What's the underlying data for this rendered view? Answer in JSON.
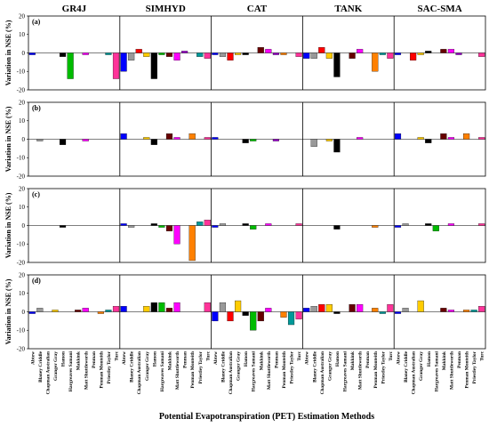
{
  "chart_data": {
    "type": "bar",
    "xlabel": "Potential Evapotranspiration (PET) Estimation Methods",
    "ylabel": "Variation in NSE (%)",
    "ylim": [
      -20,
      20
    ],
    "yticks": [
      -20,
      -10,
      0,
      10,
      20
    ],
    "models": [
      "GR4J",
      "SIMHYD",
      "CAT",
      "TANK",
      "SAC-SMA"
    ],
    "panels": [
      "(a)",
      "(b)",
      "(c)",
      "(d)"
    ],
    "categories": [
      "Abtew",
      "Blaney Criddle",
      "Chapman Australian",
      "Granger Gray",
      "Hamon",
      "Hargreaves Samani",
      "Makkink",
      "Matt Shuttleworth",
      "Penman",
      "Penman Monteith",
      "Priestley Taylor",
      "Turc"
    ],
    "colors": [
      "#0000ff",
      "#999999",
      "#ff0000",
      "#ffcc00",
      "#000000",
      "#00bb00",
      "#660000",
      "#ff00ff",
      "#9900cc",
      "#ff8000",
      "#009999",
      "#ff3399"
    ],
    "values": [
      [
        [
          -1,
          0,
          0,
          0,
          -2,
          -14,
          0,
          -1,
          0,
          0,
          -1,
          -14
        ],
        [
          -10,
          -4,
          2,
          -2,
          -14,
          -1,
          -2,
          -4,
          1,
          0,
          -2,
          -3
        ],
        [
          -1,
          -2,
          -4,
          -1,
          -1,
          0,
          3,
          2,
          -1,
          -1,
          0,
          -2
        ],
        [
          -3,
          -3,
          3,
          -3,
          -13,
          0,
          -3,
          2,
          0,
          -10,
          -1,
          -3
        ],
        [
          -1,
          0,
          -4,
          -1,
          1,
          0,
          2,
          2,
          -1,
          0,
          0,
          -2
        ]
      ],
      [
        [
          0,
          -1,
          0,
          0,
          -3,
          0,
          0,
          -1,
          0,
          0,
          0,
          0
        ],
        [
          3,
          0,
          0,
          1,
          -3,
          0,
          3,
          1,
          0,
          3,
          0,
          1
        ],
        [
          1,
          0,
          0,
          0,
          -2,
          -1,
          0,
          0,
          -1,
          0,
          0,
          0
        ],
        [
          0,
          -4,
          0,
          -1,
          -7,
          0,
          0,
          1,
          0,
          0,
          0,
          0
        ],
        [
          3,
          0,
          0,
          1,
          -2,
          0,
          3,
          1,
          0,
          3,
          0,
          1
        ]
      ],
      [
        [
          0,
          0,
          0,
          0,
          -1,
          0,
          0,
          0,
          0,
          0,
          0,
          0
        ],
        [
          1,
          -1,
          0,
          0,
          1,
          -1,
          -3,
          -10,
          0,
          -19,
          2,
          3
        ],
        [
          -1,
          1,
          0,
          0,
          1,
          -2,
          0,
          1,
          0,
          0,
          0,
          1
        ],
        [
          0,
          0,
          0,
          0,
          -2,
          0,
          0,
          0,
          0,
          -1,
          0,
          0
        ],
        [
          -1,
          1,
          0,
          0,
          1,
          -3,
          0,
          1,
          0,
          0,
          0,
          1
        ]
      ],
      [
        [
          -1,
          2,
          0,
          1,
          0,
          0,
          1,
          2,
          0,
          -1,
          1,
          3
        ],
        [
          3,
          0,
          0,
          3,
          5,
          5,
          2,
          5,
          0,
          0,
          0,
          5
        ],
        [
          -5,
          5,
          -5,
          6,
          -2,
          -10,
          -5,
          2,
          0,
          -3,
          -7,
          -4
        ],
        [
          2,
          3,
          4,
          4,
          -1,
          0,
          4,
          4,
          0,
          2,
          -1,
          4
        ],
        [
          -1,
          2,
          0,
          6,
          0,
          0,
          2,
          1,
          0,
          1,
          1,
          3
        ]
      ]
    ]
  }
}
